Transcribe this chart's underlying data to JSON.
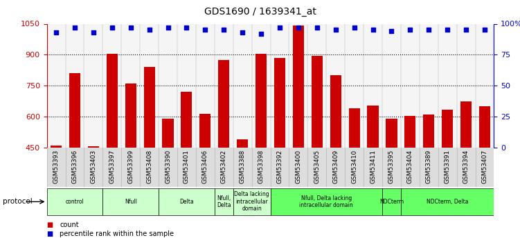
{
  "title": "GDS1690 / 1639341_at",
  "samples": [
    "GSM53393",
    "GSM53396",
    "GSM53403",
    "GSM53397",
    "GSM53399",
    "GSM53408",
    "GSM53390",
    "GSM53401",
    "GSM53406",
    "GSM53402",
    "GSM53388",
    "GSM53398",
    "GSM53392",
    "GSM53400",
    "GSM53405",
    "GSM53409",
    "GSM53410",
    "GSM53411",
    "GSM53395",
    "GSM53404",
    "GSM53389",
    "GSM53391",
    "GSM53394",
    "GSM53407"
  ],
  "counts": [
    460,
    810,
    455,
    905,
    760,
    840,
    590,
    720,
    615,
    875,
    490,
    905,
    885,
    1040,
    895,
    800,
    640,
    655,
    590,
    605,
    610,
    635,
    675,
    650
  ],
  "percentiles": [
    93,
    97,
    93,
    97,
    97,
    95,
    97,
    97,
    95,
    95,
    93,
    92,
    97,
    97,
    97,
    95,
    97,
    95,
    94,
    95,
    95,
    95,
    95,
    95
  ],
  "bar_color": "#cc0000",
  "dot_color": "#0000cc",
  "ylim_left": [
    450,
    1050
  ],
  "ylim_right": [
    0,
    100
  ],
  "yticks_left": [
    450,
    600,
    750,
    900,
    1050
  ],
  "yticks_right": [
    0,
    25,
    50,
    75,
    100
  ],
  "protocols": [
    {
      "label": "control",
      "start": 0,
      "end": 2,
      "color": "#ccffcc"
    },
    {
      "label": "Nfull",
      "start": 3,
      "end": 5,
      "color": "#ccffcc"
    },
    {
      "label": "Delta",
      "start": 6,
      "end": 8,
      "color": "#ccffcc"
    },
    {
      "label": "Nfull,\nDelta",
      "start": 9,
      "end": 9,
      "color": "#ccffcc"
    },
    {
      "label": "Delta lacking\nintracellular\ndomain",
      "start": 10,
      "end": 11,
      "color": "#ccffcc"
    },
    {
      "label": "Nfull, Delta lacking\nintracellular domain",
      "start": 12,
      "end": 17,
      "color": "#66ff66"
    },
    {
      "label": "NDCterm",
      "start": 18,
      "end": 18,
      "color": "#66ff66"
    },
    {
      "label": "NDCterm, Delta",
      "start": 19,
      "end": 23,
      "color": "#66ff66"
    }
  ],
  "legend_count_color": "#cc0000",
  "legend_dot_color": "#0000cc",
  "gridlines": [
    600,
    750,
    900
  ]
}
